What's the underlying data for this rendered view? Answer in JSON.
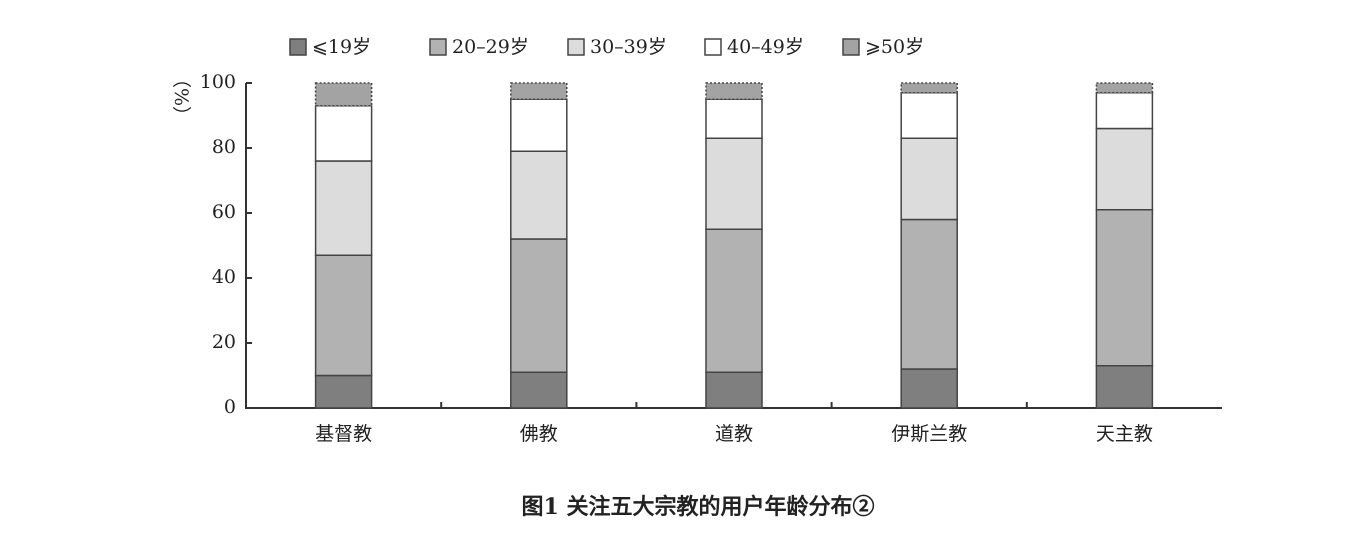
{
  "chart_data": {
    "type": "stacked_bar",
    "title": "图1 关注五大宗教的用户年龄分布②",
    "y_label": "（%）",
    "categories": [
      "基督教",
      "佛教",
      "道教",
      "伊斯兰教",
      "天主教"
    ],
    "series": [
      {
        "name": "⩽19岁",
        "color": "#7f7f7f",
        "values": [
          10,
          11,
          11,
          12,
          13
        ]
      },
      {
        "name": "20–29岁",
        "color": "#b2b2b2",
        "values": [
          37,
          41,
          44,
          46,
          48
        ]
      },
      {
        "name": "30–39岁",
        "color": "#dcdcdc",
        "values": [
          29,
          27,
          28,
          25,
          25
        ]
      },
      {
        "name": "40–49岁",
        "color": "#ffffff",
        "values": [
          17,
          16,
          12,
          14,
          11
        ]
      },
      {
        "name": "⩾50岁",
        "color": "#a3a3a3",
        "values": [
          7,
          5,
          5,
          3,
          3
        ]
      }
    ],
    "ylim": [
      0,
      100
    ],
    "yticks": [
      0,
      20,
      40,
      60,
      80,
      100
    ]
  }
}
